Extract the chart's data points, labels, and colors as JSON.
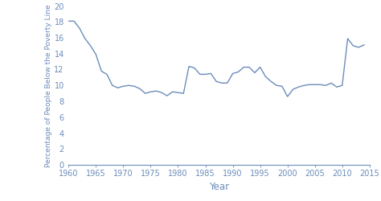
{
  "years": [
    1960,
    1961,
    1962,
    1963,
    1964,
    1965,
    1966,
    1967,
    1968,
    1969,
    1970,
    1971,
    1972,
    1973,
    1974,
    1975,
    1976,
    1977,
    1978,
    1979,
    1980,
    1981,
    1982,
    1983,
    1984,
    1985,
    1986,
    1987,
    1988,
    1989,
    1990,
    1991,
    1992,
    1993,
    1994,
    1995,
    1996,
    1997,
    1998,
    1999,
    2000,
    2001,
    2002,
    2003,
    2004,
    2005,
    2006,
    2007,
    2008,
    2009,
    2010,
    2011,
    2012,
    2013,
    2014
  ],
  "values": [
    18.1,
    18.1,
    17.2,
    15.9,
    15.0,
    13.9,
    11.8,
    11.4,
    10.0,
    9.7,
    9.9,
    10.0,
    9.9,
    9.6,
    9.0,
    9.2,
    9.3,
    9.1,
    8.7,
    9.2,
    9.1,
    9.0,
    12.4,
    12.2,
    11.4,
    11.4,
    11.5,
    10.5,
    10.3,
    10.3,
    11.5,
    11.7,
    12.3,
    12.3,
    11.6,
    12.3,
    11.1,
    10.5,
    10.0,
    9.9,
    8.6,
    9.5,
    9.8,
    10.0,
    10.1,
    10.1,
    10.1,
    10.0,
    10.3,
    9.8,
    10.0,
    15.9,
    15.0,
    14.8,
    15.1
  ],
  "line_color": "#6b8cba",
  "xlabel": "Year",
  "ylabel": "Percentage of People Below the Poverty Line",
  "xlim": [
    1960,
    2015
  ],
  "ylim": [
    0,
    20
  ],
  "xticks": [
    1960,
    1965,
    1970,
    1975,
    1980,
    1985,
    1990,
    1995,
    2000,
    2005,
    2010,
    2015
  ],
  "yticks": [
    0,
    2,
    4,
    6,
    8,
    10,
    12,
    14,
    16,
    18,
    20
  ],
  "linewidth": 1.0,
  "tick_color": "#6b8cba",
  "label_color": "#6b8cba",
  "axis_color": "#6b8cba",
  "background_color": "#ffffff",
  "tick_labelsize": 7,
  "xlabel_fontsize": 8.5,
  "ylabel_fontsize": 6.5
}
